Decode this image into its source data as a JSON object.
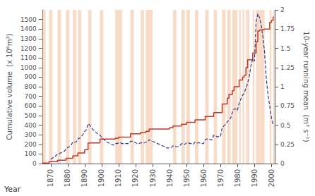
{
  "chart_data": {
    "type": "line",
    "xlabel": "Year",
    "ylabel": "Cumulative volume  (x 10⁶m³)",
    "y2label": "10-year running mean  (m³ s⁻¹)",
    "xlim": [
      1865,
      2002
    ],
    "xticks": [
      1870,
      1880,
      1890,
      1900,
      1910,
      1920,
      1930,
      1940,
      1950,
      1960,
      1970,
      1980,
      1990,
      2000
    ],
    "ylim": [
      0,
      1600
    ],
    "yticks": [
      0,
      100,
      200,
      300,
      400,
      500,
      600,
      700,
      800,
      900,
      1000,
      1100,
      1200,
      1300,
      1400,
      1500
    ],
    "y2lim": [
      0,
      2
    ],
    "y2ticks": [
      0,
      0.25,
      0.5,
      0.75,
      1,
      1.25,
      1.5,
      1.75,
      2
    ],
    "grid": false,
    "bands": {
      "color": "#f0b080",
      "ranges": [
        [
          1865,
          1867
        ],
        [
          1869,
          1871
        ],
        [
          1874,
          1876
        ],
        [
          1879,
          1881
        ],
        [
          1883,
          1885
        ],
        [
          1886,
          1888
        ],
        [
          1892,
          1894
        ],
        [
          1899,
          1901
        ],
        [
          1908,
          1910
        ],
        [
          1910,
          1912
        ],
        [
          1917,
          1919
        ],
        [
          1923,
          1925
        ],
        [
          1926,
          1928
        ],
        [
          1928,
          1930
        ],
        [
          1942,
          1944
        ],
        [
          1947,
          1949
        ],
        [
          1950,
          1952
        ],
        [
          1955,
          1957
        ],
        [
          1961,
          1963
        ],
        [
          1966,
          1968
        ],
        [
          1971,
          1973
        ],
        [
          1974,
          1975
        ],
        [
          1975,
          1976
        ],
        [
          1977,
          1978
        ],
        [
          1978,
          1979
        ],
        [
          1979,
          1980
        ],
        [
          1981,
          1982
        ],
        [
          1983,
          1984
        ],
        [
          1985,
          1986
        ],
        [
          1986,
          1987
        ],
        [
          1989,
          1990
        ],
        [
          1991,
          1992
        ],
        [
          1992,
          1993
        ],
        [
          1993,
          1994
        ],
        [
          1994,
          1995
        ],
        [
          1995,
          1996
        ],
        [
          1999,
          2000
        ],
        [
          2001,
          2002
        ]
      ]
    },
    "series": [
      {
        "type": "step",
        "color": "#c0392b",
        "line_style": "solid",
        "x": [
          1865,
          1866,
          1867,
          1868,
          1869,
          1870,
          1871,
          1872,
          1873,
          1874,
          1875,
          1876,
          1877,
          1878,
          1879,
          1880,
          1881,
          1882,
          1883,
          1884,
          1885,
          1886,
          1887,
          1888,
          1889,
          1890,
          1891,
          1892,
          1893,
          1894,
          1895,
          1896,
          1897,
          1898,
          1899,
          1900,
          1901,
          1902,
          1903,
          1904,
          1905,
          1906,
          1907,
          1908,
          1909,
          1910,
          1911,
          1912,
          1913,
          1914,
          1915,
          1916,
          1917,
          1918,
          1919,
          1920,
          1921,
          1922,
          1923,
          1924,
          1925,
          1926,
          1927,
          1928,
          1929,
          1930,
          1931,
          1932,
          1933,
          1934,
          1935,
          1936,
          1937,
          1938,
          1939,
          1940,
          1941,
          1942,
          1943,
          1944,
          1945,
          1946,
          1947,
          1948,
          1949,
          1950,
          1951,
          1952,
          1953,
          1954,
          1955,
          1956,
          1957,
          1958,
          1959,
          1960,
          1961,
          1962,
          1963,
          1964,
          1965,
          1966,
          1967,
          1968,
          1969,
          1970,
          1971,
          1972,
          1973,
          1974,
          1975,
          1976,
          1977,
          1978,
          1979,
          1980,
          1981,
          1982,
          1983,
          1984,
          1985,
          1986,
          1987,
          1988,
          1989,
          1990,
          1991,
          1992,
          1993,
          1994,
          1995,
          1996,
          1997,
          1998,
          1999,
          2000,
          2001
        ],
        "values": [
          5,
          5,
          5,
          5,
          20,
          20,
          20,
          20,
          20,
          35,
          35,
          35,
          35,
          35,
          55,
          55,
          55,
          55,
          80,
          80,
          80,
          110,
          110,
          110,
          110,
          145,
          145,
          215,
          215,
          215,
          215,
          215,
          215,
          215,
          255,
          255,
          255,
          255,
          255,
          255,
          255,
          255,
          255,
          265,
          265,
          275,
          275,
          275,
          275,
          275,
          275,
          275,
          310,
          310,
          310,
          310,
          310,
          310,
          325,
          325,
          325,
          335,
          335,
          360,
          360,
          360,
          360,
          360,
          360,
          360,
          360,
          360,
          360,
          360,
          360,
          375,
          375,
          390,
          390,
          390,
          390,
          390,
          410,
          410,
          410,
          430,
          430,
          430,
          430,
          430,
          455,
          455,
          455,
          455,
          455,
          455,
          490,
          490,
          490,
          490,
          490,
          530,
          530,
          530,
          530,
          530,
          620,
          620,
          620,
          680,
          720,
          720,
          760,
          800,
          800,
          800,
          870,
          870,
          900,
          920,
          1000,
          1080,
          1080,
          1080,
          1150,
          1150,
          1270,
          1380,
          1390,
          1395,
          1400,
          1400,
          1400,
          1400,
          1470,
          1490,
          1530
        ]
      },
      {
        "type": "line",
        "axis": "y2",
        "color": "#2c3e8c",
        "line_style": "dashed",
        "x": [
          1870,
          1871,
          1872,
          1873,
          1874,
          1875,
          1876,
          1877,
          1878,
          1879,
          1880,
          1881,
          1882,
          1883,
          1884,
          1885,
          1886,
          1887,
          1888,
          1889,
          1890,
          1891,
          1892,
          1893,
          1894,
          1895,
          1896,
          1897,
          1898,
          1899,
          1900,
          1901,
          1902,
          1903,
          1904,
          1905,
          1906,
          1907,
          1908,
          1909,
          1910,
          1911,
          1912,
          1913,
          1914,
          1915,
          1916,
          1917,
          1918,
          1919,
          1920,
          1921,
          1922,
          1923,
          1924,
          1925,
          1926,
          1927,
          1928,
          1929,
          1930,
          1931,
          1932,
          1933,
          1934,
          1935,
          1936,
          1937,
          1938,
          1939,
          1940,
          1941,
          1942,
          1943,
          1944,
          1945,
          1946,
          1947,
          1948,
          1949,
          1950,
          1951,
          1952,
          1953,
          1954,
          1955,
          1956,
          1957,
          1958,
          1959,
          1960,
          1961,
          1962,
          1963,
          1964,
          1965,
          1966,
          1967,
          1968,
          1969,
          1970,
          1971,
          1972,
          1973,
          1974,
          1975,
          1976,
          1977,
          1978,
          1979,
          1980,
          1981,
          1982,
          1983,
          1984,
          1985,
          1986,
          1987,
          1988,
          1989,
          1990,
          1991,
          1992,
          1993,
          1994,
          1995,
          1996,
          1997,
          1998,
          1999,
          2000,
          2001
        ],
        "values": [
          0.06,
          0.07,
          0.09,
          0.1,
          0.13,
          0.13,
          0.14,
          0.15,
          0.16,
          0.19,
          0.21,
          0.22,
          0.24,
          0.28,
          0.28,
          0.28,
          0.32,
          0.33,
          0.35,
          0.38,
          0.42,
          0.44,
          0.52,
          0.5,
          0.47,
          0.44,
          0.42,
          0.4,
          0.38,
          0.37,
          0.34,
          0.32,
          0.3,
          0.28,
          0.27,
          0.26,
          0.25,
          0.24,
          0.26,
          0.26,
          0.27,
          0.27,
          0.26,
          0.26,
          0.26,
          0.26,
          0.26,
          0.29,
          0.29,
          0.28,
          0.27,
          0.26,
          0.26,
          0.27,
          0.27,
          0.27,
          0.28,
          0.28,
          0.31,
          0.3,
          0.29,
          0.28,
          0.27,
          0.26,
          0.25,
          0.24,
          0.23,
          0.22,
          0.21,
          0.2,
          0.21,
          0.21,
          0.23,
          0.23,
          0.22,
          0.22,
          0.23,
          0.26,
          0.25,
          0.25,
          0.27,
          0.27,
          0.26,
          0.26,
          0.25,
          0.28,
          0.27,
          0.27,
          0.27,
          0.26,
          0.26,
          0.31,
          0.32,
          0.32,
          0.31,
          0.31,
          0.37,
          0.36,
          0.35,
          0.35,
          0.35,
          0.47,
          0.49,
          0.51,
          0.54,
          0.57,
          0.59,
          0.67,
          0.71,
          0.71,
          0.69,
          0.79,
          0.84,
          0.89,
          0.91,
          0.99,
          1.04,
          1.14,
          1.28,
          1.36,
          1.33,
          1.85,
          1.95,
          1.9,
          1.8,
          1.65,
          1.45,
          1.1,
          0.9,
          0.75,
          0.6,
          0.5
        ]
      }
    ]
  }
}
